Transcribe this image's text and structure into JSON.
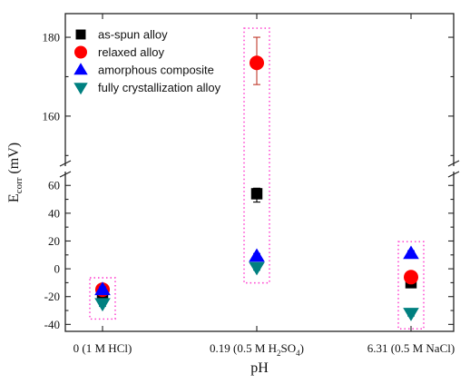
{
  "chart_data": {
    "type": "scatter",
    "xlabel": "pH",
    "ylabel": "E",
    "ylabel_sub": "corr",
    "ylabel_unit": " (mV)",
    "categories": [
      {
        "main": "0 (1 M HCl)",
        "sub": "",
        "tail": ""
      },
      {
        "main": "0.19 (0.5 M H",
        "sub": "2",
        "mid": "SO",
        "sub2": "4",
        "tail": ")"
      },
      {
        "main": "6.31 (0.5 M NaCl)",
        "sub": "",
        "tail": ""
      }
    ],
    "y_axis_lower": {
      "range": [
        -45,
        68
      ],
      "ticks": [
        -40,
        -20,
        0,
        20,
        40,
        60
      ]
    },
    "y_axis_upper": {
      "range": [
        148,
        186
      ],
      "ticks": [
        160,
        180
      ]
    },
    "axis_break": "between 68 and 148",
    "legend_position": "top-left",
    "series": [
      {
        "name": "as-spun alloy",
        "marker": "square",
        "color": "#000000",
        "values": [
          -18,
          54,
          -10
        ],
        "errors": [
          [
            3,
            3
          ],
          [
            6,
            4
          ],
          [
            2,
            2
          ]
        ]
      },
      {
        "name": "relaxed alloy",
        "marker": "circle",
        "color": "#ff0000",
        "values": [
          -15,
          173.5,
          -6
        ],
        "errors": [
          [
            2,
            2
          ],
          [
            5.5,
            6.5
          ],
          [
            2,
            2
          ]
        ]
      },
      {
        "name": "amorphous composite",
        "marker": "triangle-up",
        "color": "#0000ff",
        "values": [
          -15,
          9,
          11
        ],
        "errors": [
          [
            2,
            2
          ],
          [
            2,
            2
          ],
          [
            2,
            2
          ]
        ]
      },
      {
        "name": "fully crystallization alloy",
        "marker": "triangle-down",
        "color": "#008080",
        "values": [
          -25,
          1,
          -32
        ],
        "errors": [
          [
            2,
            2
          ],
          [
            2,
            2
          ],
          [
            2,
            2
          ]
        ]
      }
    ],
    "highlight_boxes": {
      "color": "#ff33cc",
      "style": "dotted"
    }
  }
}
